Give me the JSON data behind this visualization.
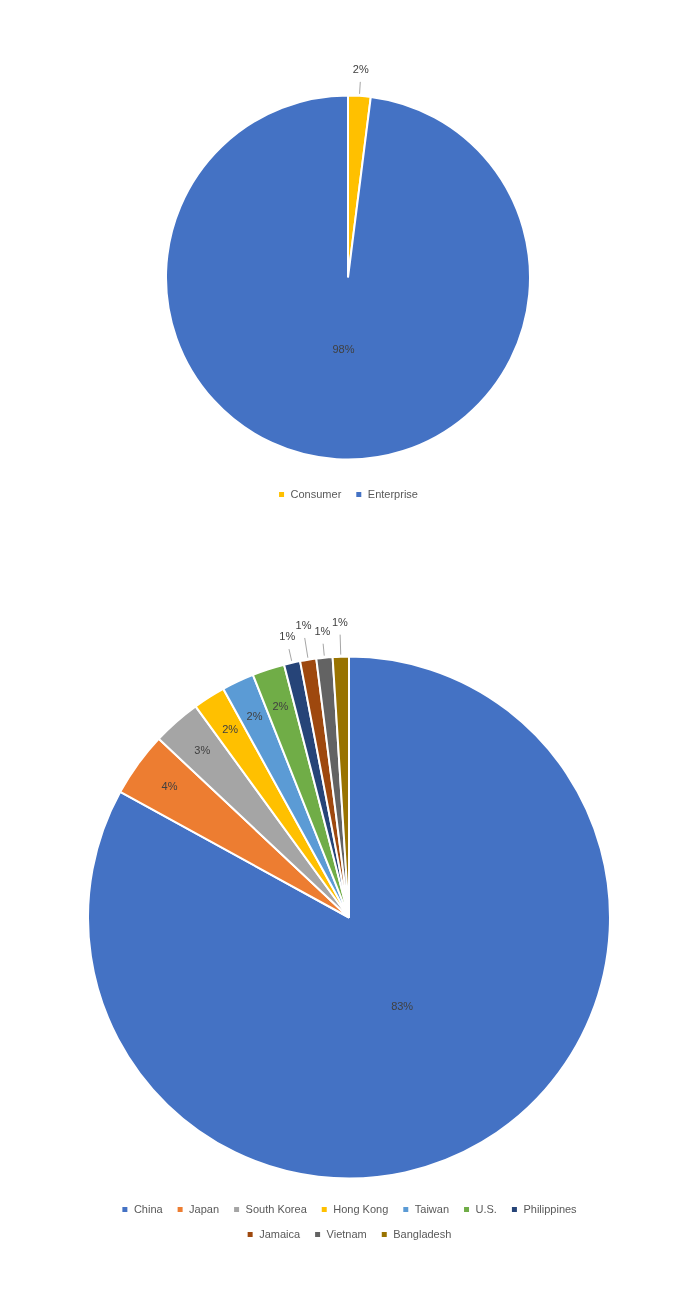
{
  "chart_data": [
    {
      "type": "pie",
      "categories": [
        "Consumer",
        "Enterprise"
      ],
      "values": [
        2,
        98
      ],
      "colors": [
        "#ffc000",
        "#4472c4"
      ],
      "value_labels": [
        "2%",
        "98%"
      ],
      "legend": "bottom"
    },
    {
      "type": "pie",
      "categories": [
        "China",
        "Japan",
        "South Korea",
        "Hong Kong",
        "Taiwan",
        "U.S.",
        "Philippines",
        "Jamaica",
        "Vietnam",
        "Bangladesh"
      ],
      "values": [
        83,
        4,
        3,
        2,
        2,
        2,
        1,
        1,
        1,
        1
      ],
      "colors": [
        "#4472c4",
        "#ed7d31",
        "#a5a5a5",
        "#ffc000",
        "#5b9bd5",
        "#70ad47",
        "#264478",
        "#9e480e",
        "#636363",
        "#997300"
      ],
      "value_labels": [
        "83%",
        "4%",
        "3%",
        "2%",
        "2%",
        "2%",
        "1%",
        "1%",
        "1%",
        "1%"
      ],
      "legend": "bottom"
    }
  ]
}
